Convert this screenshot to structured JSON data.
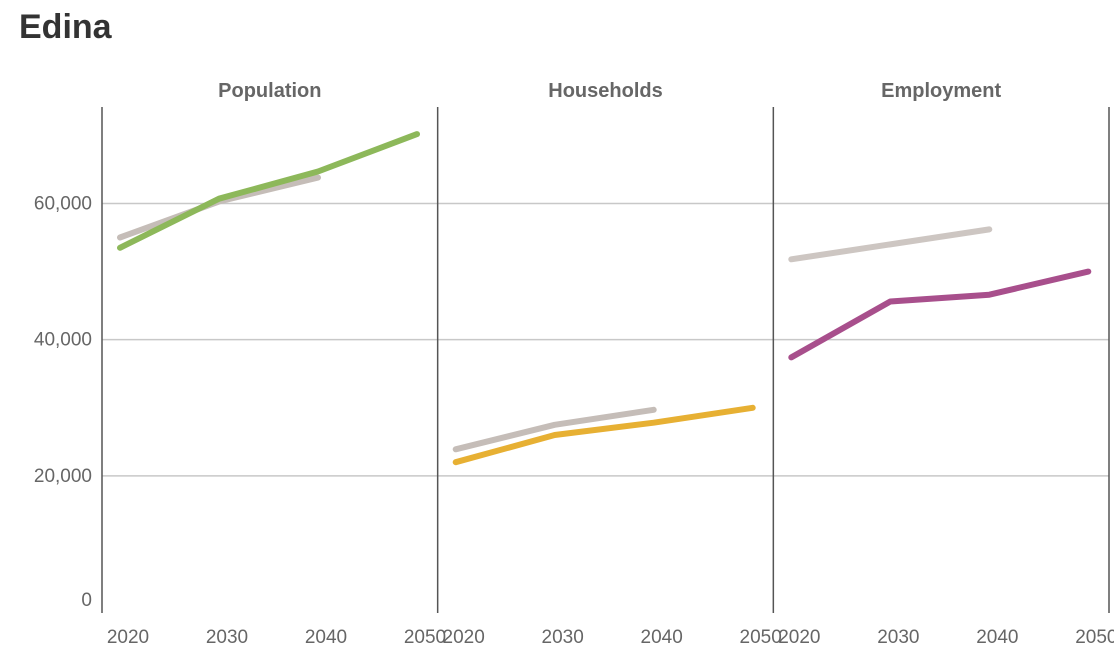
{
  "title": "Edina",
  "chart_data": {
    "type": "line",
    "title": "Edina",
    "ylim": [
      0,
      70000
    ],
    "y_ticks": [
      0,
      20000,
      40000,
      60000
    ],
    "y_tick_labels": [
      "0",
      "20,000",
      "40,000",
      "60,000"
    ],
    "x_ticks": [
      2020,
      2030,
      2040,
      2050
    ],
    "x_tick_labels": [
      "2020",
      "2030",
      "2040",
      "2050"
    ],
    "grid": true,
    "panels": [
      {
        "title": "Population",
        "series": [
          {
            "color": "#c5bdb8",
            "x": [
              2020,
              2030,
              2040
            ],
            "values": [
              55000,
              60300,
              63800
            ]
          },
          {
            "color": "#8db85a",
            "x": [
              2020,
              2030,
              2040,
              2050
            ],
            "values": [
              53500,
              60700,
              64700,
              70200
            ]
          }
        ]
      },
      {
        "title": "Households",
        "series": [
          {
            "color": "#c5bdb8",
            "x": [
              2020,
              2030,
              2040
            ],
            "values": [
              23900,
              27500,
              29700
            ]
          },
          {
            "color": "#e7b033",
            "x": [
              2020,
              2030,
              2040,
              2050
            ],
            "values": [
              22000,
              26000,
              27800,
              30000
            ]
          }
        ]
      },
      {
        "title": "Employment",
        "series": [
          {
            "color": "#cdc6c2",
            "x": [
              2020,
              2040
            ],
            "values": [
              51800,
              56200
            ]
          },
          {
            "color": "#a84f8c",
            "x": [
              2020,
              2030,
              2040,
              2050
            ],
            "values": [
              37400,
              45600,
              46600,
              50000
            ]
          }
        ]
      }
    ]
  }
}
